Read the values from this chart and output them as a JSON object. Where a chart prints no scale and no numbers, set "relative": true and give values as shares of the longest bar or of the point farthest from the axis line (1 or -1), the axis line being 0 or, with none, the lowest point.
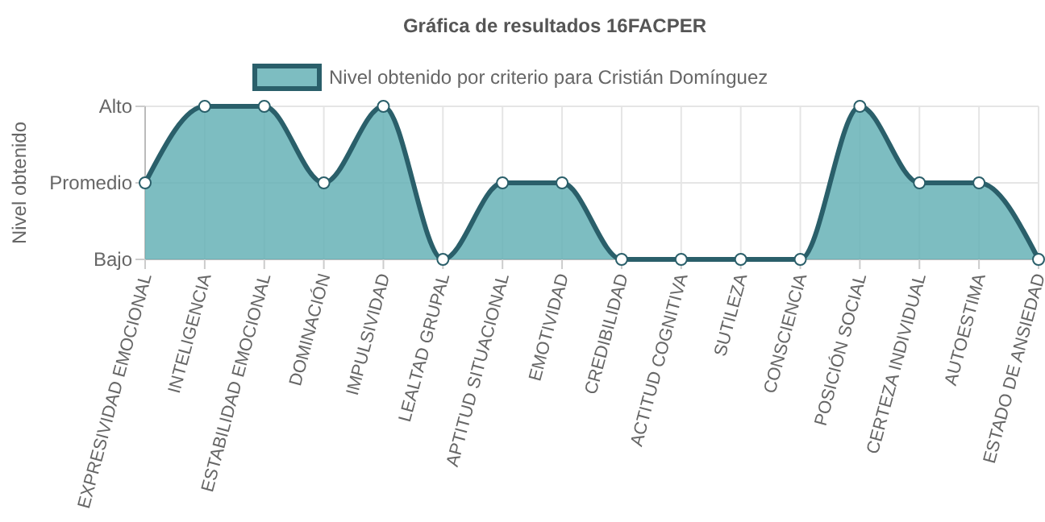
{
  "chart_data": {
    "type": "area",
    "title": "Gráfica de resultados 16FACPER",
    "ylabel": "Nivel obtenido",
    "relative": true,
    "categories": [
      "EXPRESIVIDAD EMOCIONAL",
      "INTELIGENCIA",
      "ESTABILIDAD EMOCIONAL",
      "DOMINACIÓN",
      "IMPULSIVIDAD",
      "LEALTAD GRUPAL",
      "APTITUD SITUACIONAL",
      "EMOTIVIDAD",
      "CREDIBILIDAD",
      "ACTITUD COGNITIVA",
      "SUTILEZA",
      "CONSCIENCIA",
      "POSICIÓN SOCIAL",
      "CERTEZA INDIVIDUAL",
      "AUTOESTIMA",
      "ESTADO DE ANSIEDAD"
    ],
    "series": [
      {
        "name": "Nivel obtenido por criterio para Cristián Domínguez",
        "color": "#2a5f6a",
        "values": [
          0.5,
          1,
          1,
          0.5,
          1,
          0,
          0.5,
          0.5,
          0,
          0,
          0,
          0,
          1,
          0.5,
          0.5,
          0
        ]
      }
    ],
    "annotations": [
      "Bajo",
      "Promedio",
      "Alto"
    ],
    "grid": true,
    "legend": "top",
    "marker": "circle",
    "line_style": "solid"
  }
}
